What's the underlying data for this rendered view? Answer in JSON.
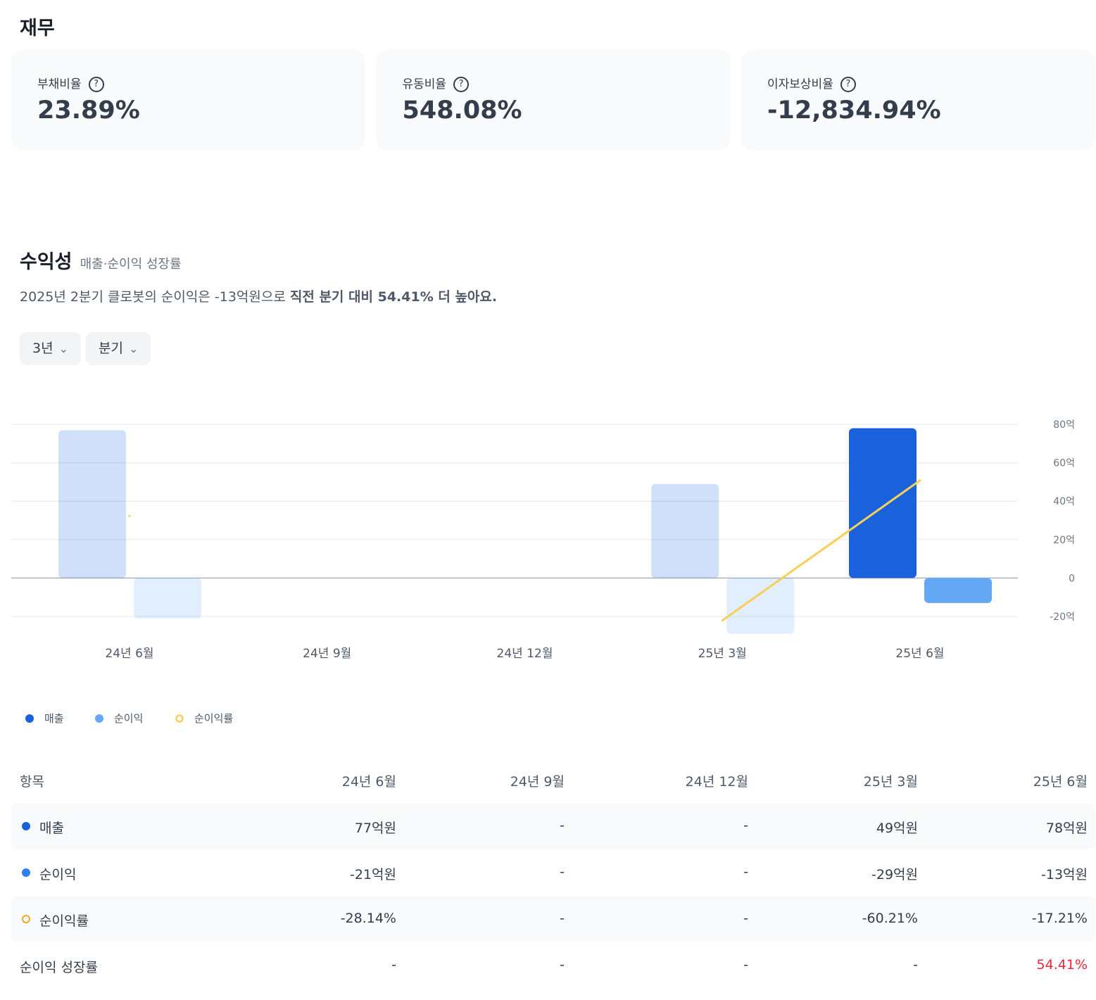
{
  "finance": {
    "title": "재무",
    "cards": [
      {
        "label": "부채비율",
        "value": "23.89%"
      },
      {
        "label": "유동비율",
        "value": "548.08%"
      },
      {
        "label": "이자보상비율",
        "value": "-12,834.94%"
      }
    ]
  },
  "profitability": {
    "title": "수익성",
    "subtitle": "매출·순이익 성장률",
    "summary": "2025년 2분기 클로봇의 순이익은 -13억원으로 ",
    "summary_bold": "직전 분기 대비 54.41% 더 높아요.",
    "filters": [
      "3년",
      "분기"
    ]
  },
  "chart_data": {
    "type": "bar",
    "categories": [
      "24년 6월",
      "24년 9월",
      "24년 12월",
      "25년 3월",
      "25년 6월"
    ],
    "series": [
      {
        "name": "매출",
        "color": "#1a62db",
        "values": [
          77,
          null,
          null,
          49,
          78
        ]
      },
      {
        "name": "순이익",
        "color": "#64a8f5",
        "values": [
          -21,
          null,
          null,
          -29,
          -13
        ]
      },
      {
        "name": "순이익률",
        "color": "#f9cf5a",
        "type": "line",
        "axis": "y2",
        "values": [
          -28.14,
          null,
          null,
          -60.21,
          -17.21
        ]
      }
    ],
    "ylim": [
      -20,
      80
    ],
    "yticks": [
      {
        "value": 80,
        "label": "80억"
      },
      {
        "value": 60,
        "label": "60억"
      },
      {
        "value": 40,
        "label": "40억"
      },
      {
        "value": 20,
        "label": "20억"
      },
      0,
      {
        "value": -20,
        "label": "-20억"
      }
    ],
    "y2lim": [
      -59,
      0
    ],
    "grid": true
  },
  "table": {
    "header": [
      "항목",
      "24년 6월",
      "24년 9월",
      "24년 12월",
      "25년 3월",
      "25년 6월"
    ],
    "rows": [
      [
        "매출",
        "77억원",
        "-",
        "-",
        "49억원",
        "78억원"
      ],
      [
        "순이익",
        "-21억원",
        "-",
        "-",
        "-29억원",
        "-13억원"
      ],
      [
        "순이익률",
        "-28.14%",
        "-",
        "-",
        "-60.21%",
        "-17.21%"
      ],
      [
        "순이익 성장률",
        "-",
        "-",
        "-",
        "-",
        "54.41%"
      ]
    ]
  }
}
